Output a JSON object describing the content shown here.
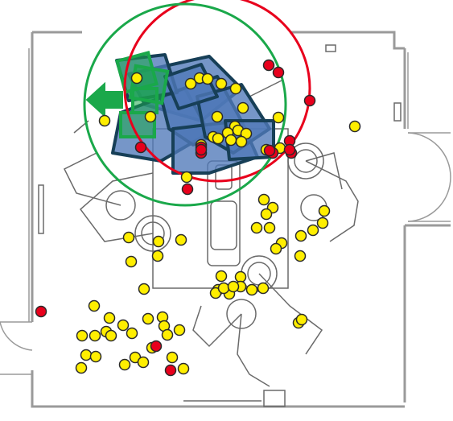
{
  "diagram": {
    "type": "floor-plan-overlay",
    "colors": {
      "wall": "#9a9a9a",
      "equipment": "#6a6a6a",
      "yellow_marker": "#ffee00",
      "red_marker": "#e8001c",
      "marker_stroke": "#2a2a2a",
      "red_circle": "#e8001c",
      "green_circle": "#1aa84a",
      "blue_shape_fill": "#4f78b8",
      "blue_shape_stroke": "#173f57",
      "green_square": "#1aa84a",
      "green_arrow": "#1aa84a"
    },
    "markers_yellow_count": 92,
    "markers_red_count": 17,
    "circles": [
      {
        "id": "red-circle",
        "color": "red"
      },
      {
        "id": "green-circle",
        "color": "green"
      }
    ],
    "icons": [
      "left-arrow-icon"
    ]
  }
}
